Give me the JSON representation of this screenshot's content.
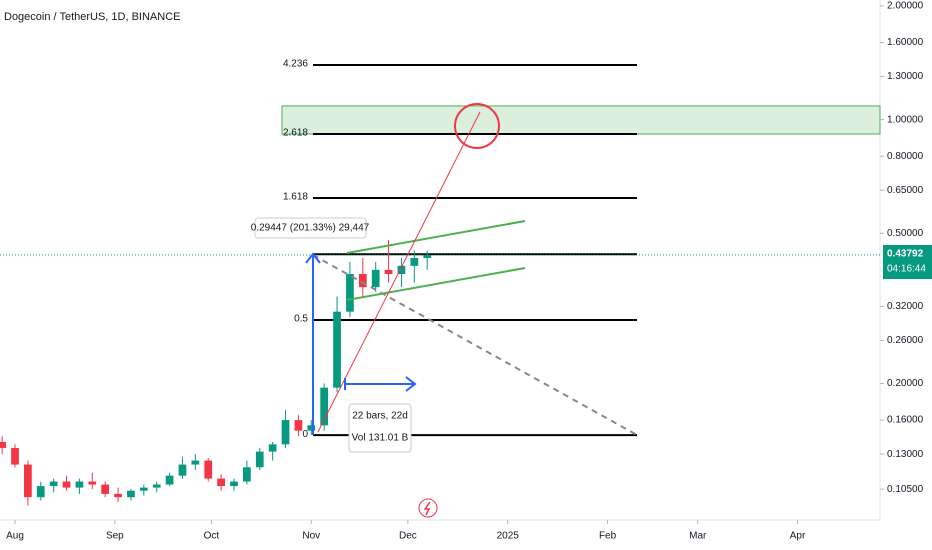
{
  "chart_data": {
    "type": "candlestick",
    "title": "Dogecoin / TetherUS, 1D, BINANCE",
    "log_scale": true,
    "up_color": "#089981",
    "down_color": "#f23645",
    "x": [
      -4,
      0,
      4,
      8,
      12,
      16,
      20,
      24,
      28,
      32,
      36,
      40,
      44,
      48,
      52,
      56,
      60,
      64,
      68,
      72,
      76,
      80,
      84,
      88,
      92,
      96,
      100,
      104,
      108,
      112,
      116,
      120,
      124,
      128
    ],
    "open": [
      0.14,
      0.135,
      0.122,
      0.1,
      0.107,
      0.11,
      0.106,
      0.11,
      0.108,
      0.102,
      0.1,
      0.104,
      0.106,
      0.108,
      0.114,
      0.122,
      0.125,
      0.112,
      0.107,
      0.11,
      0.12,
      0.132,
      0.138,
      0.16,
      0.15,
      0.155,
      0.195,
      0.31,
      0.39,
      0.36,
      0.4,
      0.39,
      0.41,
      0.43
    ],
    "high": [
      0.145,
      0.138,
      0.125,
      0.11,
      0.112,
      0.114,
      0.112,
      0.116,
      0.11,
      0.106,
      0.105,
      0.108,
      0.11,
      0.116,
      0.128,
      0.13,
      0.127,
      0.115,
      0.112,
      0.125,
      0.135,
      0.14,
      0.17,
      0.165,
      0.16,
      0.2,
      0.34,
      0.42,
      0.43,
      0.42,
      0.48,
      0.43,
      0.45,
      0.45
    ],
    "low": [
      0.13,
      0.12,
      0.095,
      0.098,
      0.103,
      0.104,
      0.102,
      0.105,
      0.1,
      0.097,
      0.098,
      0.101,
      0.103,
      0.107,
      0.112,
      0.118,
      0.11,
      0.104,
      0.104,
      0.108,
      0.118,
      0.125,
      0.135,
      0.145,
      0.146,
      0.15,
      0.19,
      0.3,
      0.34,
      0.35,
      0.37,
      0.36,
      0.37,
      0.4
    ],
    "close": [
      0.135,
      0.122,
      0.1,
      0.107,
      0.11,
      0.106,
      0.11,
      0.108,
      0.102,
      0.1,
      0.104,
      0.106,
      0.108,
      0.114,
      0.122,
      0.125,
      0.112,
      0.107,
      0.11,
      0.12,
      0.132,
      0.138,
      0.16,
      0.15,
      0.155,
      0.195,
      0.31,
      0.39,
      0.36,
      0.4,
      0.39,
      0.41,
      0.43,
      0.438
    ],
    "xlim": [
      -4.66,
      268.6
    ],
    "xticks": [
      {
        "value": 0,
        "label": "Aug"
      },
      {
        "value": 31,
        "label": "Sep"
      },
      {
        "value": 61,
        "label": "Oct"
      },
      {
        "value": 92,
        "label": "Nov"
      },
      {
        "value": 122,
        "label": "Dec"
      },
      {
        "value": 153,
        "label": "2025"
      },
      {
        "value": 184,
        "label": "Feb"
      },
      {
        "value": 212,
        "label": "Mar"
      },
      {
        "value": 243,
        "label": "Apr"
      }
    ],
    "ylim": [
      0.087,
      2.074
    ],
    "yticks": [
      {
        "value": 2,
        "label": "2.00000"
      },
      {
        "value": 1.6,
        "label": "1.60000"
      },
      {
        "value": 1.3,
        "label": "1.30000"
      },
      {
        "value": 1,
        "label": "1.00000"
      },
      {
        "value": 0.8,
        "label": "0.80000"
      },
      {
        "value": 0.65,
        "label": "0.65000"
      },
      {
        "value": 0.5,
        "label": "0.50000"
      },
      {
        "value": 0.32,
        "label": "0.32000"
      },
      {
        "value": 0.26,
        "label": "0.26000"
      },
      {
        "value": 0.2,
        "label": "0.20000"
      },
      {
        "value": 0.16,
        "label": "0.16000"
      },
      {
        "value": 0.13,
        "label": "0.13000"
      },
      {
        "value": 0.105,
        "label": "0.10500"
      }
    ],
    "fib_levels": [
      {
        "label": "4.236",
        "value": 1.395
      },
      {
        "label": "2.618",
        "value": 0.916
      },
      {
        "label": "1.618",
        "value": 0.62
      },
      {
        "label": null,
        "value": 0.44
      },
      {
        "label": "0.5",
        "value": 0.2945
      },
      {
        "label": "0",
        "value": 0.146
      }
    ],
    "target_zone": [
      0.916,
      1.087
    ],
    "current_price": {
      "value": 0.43792,
      "label": "0.43792",
      "countdown": "04:16:44"
    },
    "annotations": {
      "measure": "0.29447 (201.33%) 29,447",
      "bars": "22 bars, 22d",
      "volume": "Vol 131.01 B"
    }
  }
}
